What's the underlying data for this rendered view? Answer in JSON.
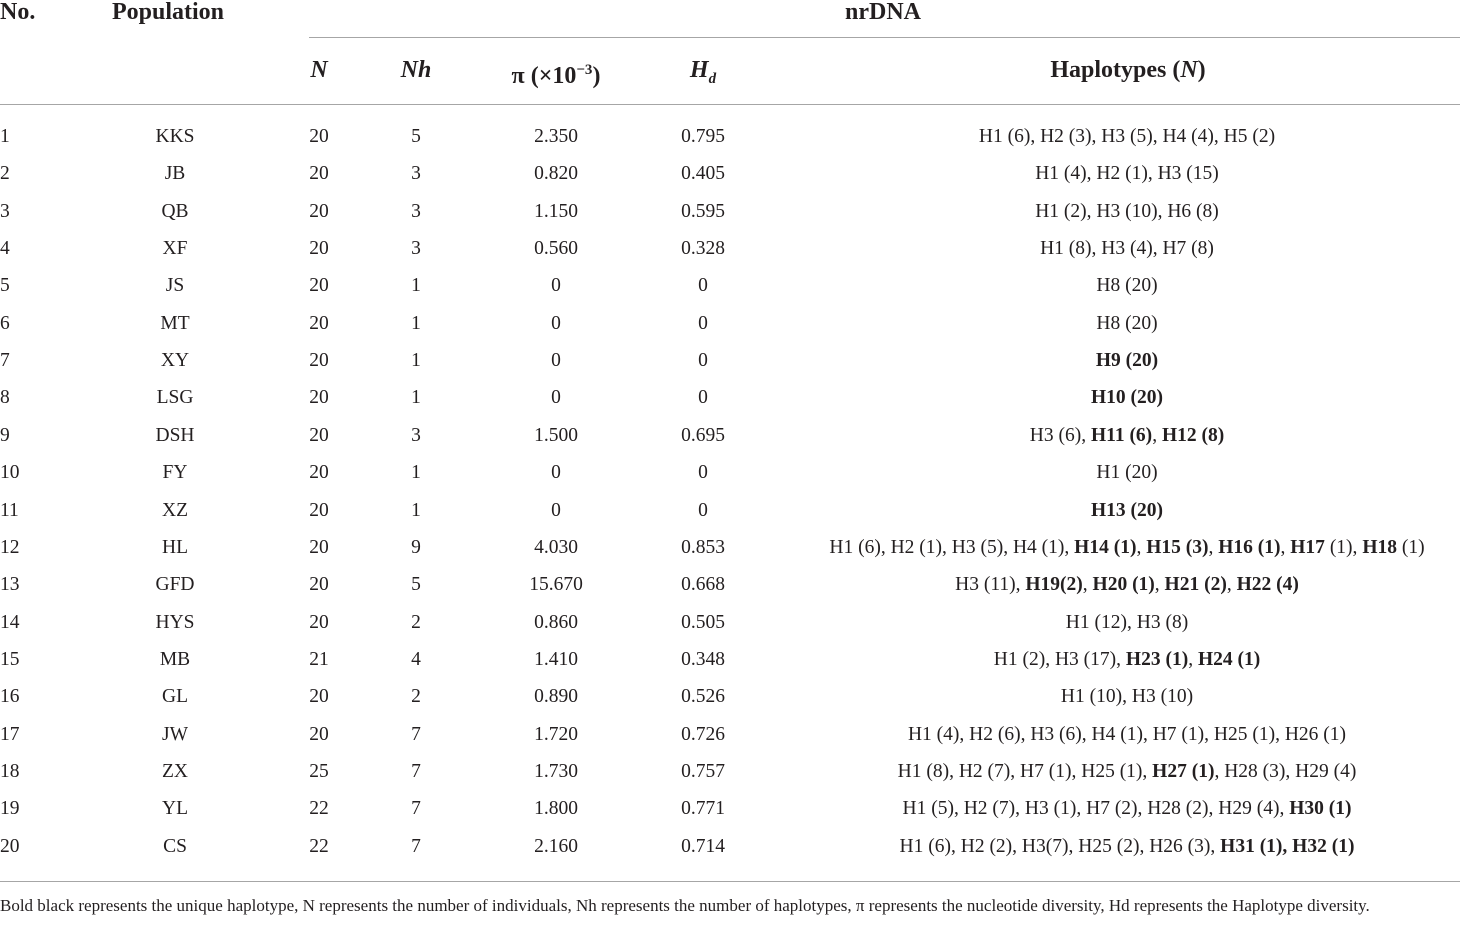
{
  "headers": {
    "no": "No.",
    "population": "Population",
    "group": "nrDNA",
    "n": "N",
    "nh": "Nh",
    "pi_symbol": "π (×10",
    "pi_exp": "−3",
    "pi_close": ")",
    "hd_main": "H",
    "hd_sub": "d",
    "haplotypes_pre": "Haplotypes (",
    "haplotypes_n": "N",
    "haplotypes_post": ")"
  },
  "rows": [
    {
      "no": "1",
      "pop": "KKS",
      "n": "20",
      "nh": "5",
      "pi": "2.350",
      "hd": "0.795",
      "hap": [
        {
          "t": "H1 (6), H2 (3), H3 (5), H4 (4), H5 (2)",
          "b": false
        }
      ]
    },
    {
      "no": "2",
      "pop": "JB",
      "n": "20",
      "nh": "3",
      "pi": "0.820",
      "hd": "0.405",
      "hap": [
        {
          "t": "H1 (4), H2 (1), H3 (15)",
          "b": false
        }
      ]
    },
    {
      "no": "3",
      "pop": "QB",
      "n": "20",
      "nh": "3",
      "pi": "1.150",
      "hd": "0.595",
      "hap": [
        {
          "t": "H1 (2), H3 (10), H6 (8)",
          "b": false
        }
      ]
    },
    {
      "no": "4",
      "pop": "XF",
      "n": "20",
      "nh": "3",
      "pi": "0.560",
      "hd": "0.328",
      "hap": [
        {
          "t": "H1 (8), H3 (4), H7 (8)",
          "b": false
        }
      ]
    },
    {
      "no": "5",
      "pop": "JS",
      "n": "20",
      "nh": "1",
      "pi": "0",
      "hd": "0",
      "hap": [
        {
          "t": "H8 (20)",
          "b": false
        }
      ]
    },
    {
      "no": "6",
      "pop": "MT",
      "n": "20",
      "nh": "1",
      "pi": "0",
      "hd": "0",
      "hap": [
        {
          "t": "H8 (20)",
          "b": false
        }
      ]
    },
    {
      "no": "7",
      "pop": "XY",
      "n": "20",
      "nh": "1",
      "pi": "0",
      "hd": "0",
      "hap": [
        {
          "t": "H9 (20)",
          "b": true
        }
      ]
    },
    {
      "no": "8",
      "pop": "LSG",
      "n": "20",
      "nh": "1",
      "pi": "0",
      "hd": "0",
      "hap": [
        {
          "t": "H10 (20)",
          "b": true
        }
      ]
    },
    {
      "no": "9",
      "pop": "DSH",
      "n": "20",
      "nh": "3",
      "pi": "1.500",
      "hd": "0.695",
      "hap": [
        {
          "t": "H3 (6), ",
          "b": false
        },
        {
          "t": "H11 (6)",
          "b": true
        },
        {
          "t": ", ",
          "b": false
        },
        {
          "t": "H12 (8)",
          "b": true
        }
      ]
    },
    {
      "no": "10",
      "pop": "FY",
      "n": "20",
      "nh": "1",
      "pi": "0",
      "hd": "0",
      "hap": [
        {
          "t": "H1 (20)",
          "b": false
        }
      ]
    },
    {
      "no": "11",
      "pop": "XZ",
      "n": "20",
      "nh": "1",
      "pi": "0",
      "hd": "0",
      "hap": [
        {
          "t": "H13 (20)",
          "b": true
        }
      ]
    },
    {
      "no": "12",
      "pop": "HL",
      "n": "20",
      "nh": "9",
      "pi": "4.030",
      "hd": "0.853",
      "hap": [
        {
          "t": "H1 (6), H2 (1), H3 (5), H4 (1), ",
          "b": false
        },
        {
          "t": "H14 (1)",
          "b": true
        },
        {
          "t": ", ",
          "b": false
        },
        {
          "t": "H15 (3)",
          "b": true
        },
        {
          "t": ", ",
          "b": false
        },
        {
          "t": "H16 (1)",
          "b": true
        },
        {
          "t": ", ",
          "b": false
        },
        {
          "t": "H17",
          "b": true
        },
        {
          "t": " (1), ",
          "b": false
        },
        {
          "t": "H18",
          "b": true
        },
        {
          "t": " (1)",
          "b": false
        }
      ]
    },
    {
      "no": "13",
      "pop": "GFD",
      "n": "20",
      "nh": "5",
      "pi": "15.670",
      "hd": "0.668",
      "hap": [
        {
          "t": "H3 (11), ",
          "b": false
        },
        {
          "t": "H19(2)",
          "b": true
        },
        {
          "t": ", ",
          "b": false
        },
        {
          "t": "H20 (1)",
          "b": true
        },
        {
          "t": ", ",
          "b": false
        },
        {
          "t": "H21 (2)",
          "b": true
        },
        {
          "t": ", ",
          "b": false
        },
        {
          "t": "H22 (4)",
          "b": true
        }
      ]
    },
    {
      "no": "14",
      "pop": "HYS",
      "n": "20",
      "nh": "2",
      "pi": "0.860",
      "hd": "0.505",
      "hap": [
        {
          "t": "H1 (12), H3 (8)",
          "b": false
        }
      ]
    },
    {
      "no": "15",
      "pop": "MB",
      "n": "21",
      "nh": "4",
      "pi": "1.410",
      "hd": "0.348",
      "hap": [
        {
          "t": "H1 (2), H3 (17), ",
          "b": false
        },
        {
          "t": "H23 (1)",
          "b": true
        },
        {
          "t": ", ",
          "b": false
        },
        {
          "t": "H24 (1)",
          "b": true
        }
      ]
    },
    {
      "no": "16",
      "pop": "GL",
      "n": "20",
      "nh": "2",
      "pi": "0.890",
      "hd": "0.526",
      "hap": [
        {
          "t": "H1 (10), H3 (10)",
          "b": false
        }
      ]
    },
    {
      "no": "17",
      "pop": "JW",
      "n": "20",
      "nh": "7",
      "pi": "1.720",
      "hd": "0.726",
      "hap": [
        {
          "t": "H1 (4), H2 (6), H3 (6), H4 (1), H7 (1), H25 (1), H26 (1)",
          "b": false
        }
      ]
    },
    {
      "no": "18",
      "pop": "ZX",
      "n": "25",
      "nh": "7",
      "pi": "1.730",
      "hd": "0.757",
      "hap": [
        {
          "t": "H1 (8), H2 (7), H7 (1), H25 (1), ",
          "b": false
        },
        {
          "t": "H27 (1)",
          "b": true
        },
        {
          "t": ", H28 (3), H29 (4)",
          "b": false
        }
      ]
    },
    {
      "no": "19",
      "pop": "YL",
      "n": "22",
      "nh": "7",
      "pi": "1.800",
      "hd": "0.771",
      "hap": [
        {
          "t": "H1 (5), H2 (7), H3 (1), H7 (2), H28 (2), H29 (4), ",
          "b": false
        },
        {
          "t": "H30 (1)",
          "b": true
        }
      ]
    },
    {
      "no": "20",
      "pop": "CS",
      "n": "22",
      "nh": "7",
      "pi": "2.160",
      "hd": "0.714",
      "hap": [
        {
          "t": "H1 (6), H2 (2), H3(7), H25 (2), H26 (3), ",
          "b": false
        },
        {
          "t": "H31 (1), H32 (1)",
          "b": true
        }
      ]
    }
  ],
  "footnote": "Bold black represents the unique haplotype, N represents the number of individuals, Nh represents the number of haplotypes, π represents the nucleotide diversity, Hd represents the Haplotype diversity."
}
